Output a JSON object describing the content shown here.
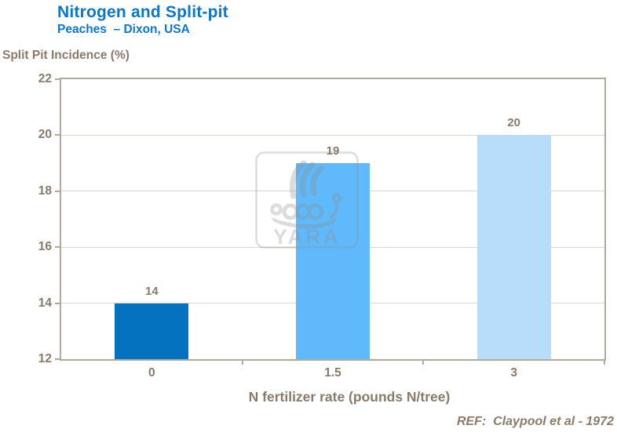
{
  "header": {
    "title": "Nitrogen and Split-pit",
    "subtitle": "Peaches  – Dixon, USA"
  },
  "chart_data": {
    "type": "bar",
    "title": "Nitrogen and Split-pit",
    "subtitle": "Peaches – Dixon, USA",
    "ylabel": "Split Pit Incidence (%)",
    "xlabel": "N fertilizer rate (pounds N/tree)",
    "categories": [
      "0",
      "1.5",
      "3"
    ],
    "values": [
      14,
      19,
      20
    ],
    "bar_colors": [
      "#0572c0",
      "#5fb9fa",
      "#b7ddfb"
    ],
    "ylim": [
      12,
      22
    ],
    "ytick_step": 2,
    "grid": true,
    "legend_position": "none"
  },
  "watermark": {
    "brand": "YARA",
    "icon": "yara-viking-ship-logo"
  },
  "footer": {
    "reference": "REF:  Claypool et al - 1972"
  },
  "colors": {
    "title_blue": "#0d76c6",
    "text_brown": "#8a7a6a",
    "frame_gray": "#b3aa9e",
    "gridline": "#dcd7ce",
    "bar_dark_blue": "#0572c0",
    "bar_medium_blue": "#5fb9fa",
    "bar_light_blue": "#b7ddfb"
  }
}
